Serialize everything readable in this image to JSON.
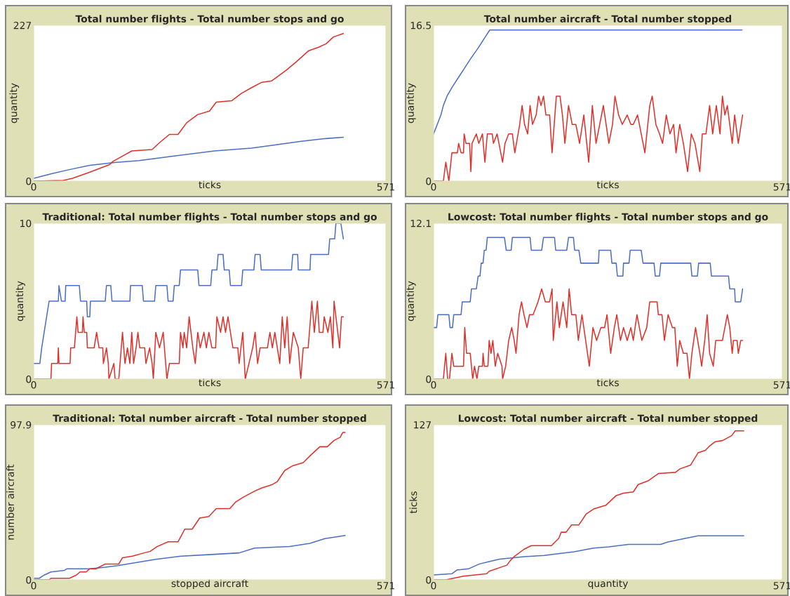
{
  "chart_data": [
    {
      "type": "line",
      "title": "Total number flights - Total number stops and go",
      "xlabel": "ticks",
      "ylabel": "quantity",
      "xlim": [
        0,
        571
      ],
      "ylim": [
        0,
        227
      ],
      "xticks": [
        0,
        571
      ],
      "yticks": [
        0,
        227
      ],
      "series": [
        {
          "color": "#4a6fc4",
          "x": [
            0,
            30,
            59,
            91,
            131,
            171,
            232,
            293,
            353,
            393,
            434,
            474,
            502
          ],
          "values": [
            4,
            11,
            17,
            23,
            27,
            30,
            37,
            44,
            48,
            53,
            58,
            62,
            64
          ]
        },
        {
          "color": "#e0302a",
          "x": [
            0,
            48,
            63,
            91,
            123,
            129,
            143,
            159,
            192,
            204,
            220,
            234,
            248,
            266,
            285,
            296,
            321,
            337,
            353,
            370,
            386,
            395,
            410,
            426,
            446,
            462,
            474,
            486,
            502
          ],
          "values": [
            0,
            1,
            4,
            13,
            24,
            29,
            36,
            44,
            46,
            56,
            68,
            68,
            85,
            97,
            102,
            115,
            117,
            128,
            136,
            144,
            146,
            152,
            162,
            174,
            190,
            195,
            200,
            210,
            215
          ]
        }
      ]
    },
    {
      "type": "line",
      "title": "Total number aircraft - Total number stopped",
      "xlabel": "ticks",
      "ylabel": "quantity",
      "xlim": [
        0,
        571
      ],
      "ylim": [
        0,
        16.5
      ],
      "xticks": [
        0,
        571
      ],
      "yticks": [
        0,
        16.5
      ],
      "series": [
        {
          "color": "#4a6fc4",
          "x": [
            0,
            6,
            12,
            16,
            22,
            31,
            41,
            51,
            61,
            72,
            82,
            92,
            505
          ],
          "values": [
            5,
            6,
            7,
            8,
            9,
            10,
            11,
            12,
            13,
            14,
            15,
            16,
            16
          ]
        },
        {
          "color": "#e0302a",
          "x": [
            0,
            16,
            20,
            25,
            30,
            39,
            41,
            45,
            49,
            50,
            53,
            59,
            61,
            63,
            70,
            74,
            80,
            84,
            88,
            96,
            98,
            104,
            113,
            117,
            123,
            129,
            133,
            141,
            145,
            149,
            154,
            158,
            162,
            168,
            172,
            176,
            180,
            184,
            190,
            194,
            201,
            207,
            211,
            215,
            221,
            227,
            233,
            239,
            246,
            254,
            260,
            266,
            272,
            278,
            287,
            293,
            297,
            303,
            309,
            317,
            323,
            327,
            334,
            340,
            346,
            354,
            358,
            364,
            370,
            375,
            381,
            387,
            393,
            397,
            403,
            409,
            416,
            422,
            428,
            436,
            440,
            446,
            452,
            457,
            463,
            469,
            473,
            477,
            481,
            489,
            493,
            499,
            506
          ],
          "values": [
            0,
            0,
            2,
            0,
            3,
            3,
            4,
            3,
            3,
            5,
            4,
            4,
            1,
            4,
            5,
            4,
            5,
            2,
            5,
            5,
            4,
            5,
            2,
            4,
            5,
            5,
            3,
            6,
            8,
            6,
            5,
            8,
            6,
            7,
            9,
            8,
            9,
            7,
            7,
            3,
            9,
            9,
            7,
            4,
            8,
            6,
            6,
            4,
            7,
            2,
            8,
            4,
            6,
            8,
            4,
            6,
            9,
            7,
            6,
            7,
            6,
            6,
            7,
            5,
            3,
            8,
            9,
            6,
            5,
            4,
            7,
            5,
            6,
            3,
            6,
            4,
            1,
            5,
            4,
            1,
            5,
            5,
            8,
            5,
            8,
            5,
            9,
            7,
            8,
            4,
            7,
            4,
            7
          ]
        }
      ]
    },
    {
      "type": "line",
      "title": "Traditional: Total number flights - Total number stops and go",
      "xlabel": "ticks",
      "ylabel": "quantity",
      "xlim": [
        0,
        571
      ],
      "ylim": [
        0,
        10
      ],
      "xticks": [
        0,
        571
      ],
      "yticks": [
        0,
        10
      ],
      "series": [
        {
          "color": "#4a6fc4",
          "x": [
            0,
            10,
            13,
            17,
            21,
            25,
            40,
            41,
            45,
            51,
            52,
            74,
            76,
            86,
            87,
            91,
            92,
            116,
            118,
            125,
            127,
            156,
            157,
            176,
            178,
            196,
            198,
            216,
            218,
            226,
            228,
            236,
            238,
            266,
            268,
            287,
            289,
            297,
            299,
            307,
            309,
            317,
            319,
            337,
            339,
            357,
            359,
            367,
            369,
            418,
            420,
            428,
            429,
            448,
            449,
            478,
            480,
            488,
            490,
            498,
            502
          ],
          "values": [
            1,
            1,
            2,
            3,
            4,
            5,
            5,
            6,
            5,
            5,
            6,
            6,
            5,
            5,
            4,
            4,
            5,
            5,
            6,
            6,
            5,
            5,
            6,
            6,
            5,
            5,
            6,
            6,
            5,
            5,
            6,
            6,
            7,
            7,
            6,
            6,
            7,
            7,
            8,
            8,
            7,
            7,
            6,
            6,
            7,
            7,
            8,
            8,
            7,
            7,
            8,
            8,
            7,
            7,
            8,
            8,
            9,
            9,
            10,
            10,
            9
          ]
        },
        {
          "color": "#e0302a",
          "x": [
            0,
            28,
            29,
            39,
            40,
            41,
            59,
            60,
            66,
            70,
            72,
            79,
            80,
            82,
            86,
            87,
            98,
            102,
            106,
            112,
            113,
            118,
            121,
            122,
            130,
            132,
            138,
            144,
            148,
            152,
            156,
            159,
            162,
            166,
            169,
            172,
            180,
            182,
            188,
            192,
            194,
            198,
            204,
            210,
            214,
            216,
            220,
            236,
            238,
            242,
            244,
            248,
            252,
            258,
            262,
            266,
            270,
            276,
            280,
            284,
            289,
            295,
            297,
            303,
            307,
            311,
            315,
            319,
            323,
            331,
            333,
            339,
            343,
            349,
            355,
            359,
            363,
            367,
            379,
            383,
            387,
            391,
            395,
            399,
            403,
            407,
            411,
            415,
            421,
            429,
            433,
            437,
            445,
            451,
            455,
            460,
            463,
            469,
            471,
            477,
            481,
            485,
            487,
            493,
            496,
            499,
            502
          ],
          "values": [
            0,
            0,
            1,
            1,
            2,
            1,
            1,
            2,
            2,
            4,
            3,
            3,
            4,
            3,
            3,
            2,
            2,
            3,
            2,
            2,
            1,
            2,
            1,
            0,
            1,
            0,
            0,
            3,
            1,
            2,
            1,
            3,
            1,
            2,
            3,
            2,
            2,
            1,
            2,
            1,
            0,
            3,
            2,
            3,
            1,
            0,
            1,
            1,
            3,
            2,
            3,
            2,
            4,
            2,
            1,
            3,
            2,
            3,
            2,
            3,
            2,
            2,
            4,
            3,
            4,
            3,
            4,
            3,
            2,
            2,
            1,
            3,
            0,
            1,
            2,
            3,
            1,
            2,
            2,
            3,
            2,
            3,
            2,
            1,
            4,
            2,
            4,
            1,
            3,
            2,
            0,
            2,
            2,
            5,
            3,
            5,
            3,
            3,
            4,
            3,
            4,
            2,
            5,
            3,
            2,
            4,
            4
          ]
        }
      ]
    },
    {
      "type": "line",
      "title": "Lowcost: Total number flights - Total number stops and go",
      "xlabel": "ticks",
      "ylabel": "quantity",
      "xlim": [
        0,
        571
      ],
      "ylim": [
        0,
        12.1
      ],
      "xticks": [
        0,
        571
      ],
      "yticks": [
        0,
        12.1
      ],
      "series": [
        {
          "color": "#4a6fc4",
          "x": [
            0,
            5,
            7,
            25,
            27,
            31,
            33,
            45,
            47,
            60,
            62,
            70,
            73,
            76,
            78,
            81,
            83,
            86,
            88,
            116,
            119,
            127,
            129,
            158,
            160,
            177,
            180,
            198,
            200,
            218,
            221,
            229,
            231,
            238,
            241,
            270,
            271,
            290,
            292,
            299,
            301,
            310,
            311,
            320,
            322,
            340,
            343,
            361,
            363,
            370,
            372,
            421,
            423,
            432,
            434,
            453,
            455,
            483,
            485,
            493,
            494,
            503,
            506
          ],
          "values": [
            4,
            4,
            5,
            5,
            4,
            4,
            5,
            5,
            6,
            6,
            7,
            7,
            8,
            8,
            9,
            9,
            10,
            10,
            11,
            11,
            10,
            10,
            11,
            11,
            10,
            10,
            11,
            11,
            10,
            10,
            11,
            11,
            10,
            10,
            9,
            9,
            10,
            10,
            9,
            9,
            8,
            8,
            9,
            9,
            10,
            10,
            9,
            9,
            8,
            8,
            9,
            9,
            8,
            8,
            9,
            9,
            8,
            8,
            7,
            7,
            6,
            6,
            7
          ]
        },
        {
          "color": "#e0302a",
          "x": [
            0,
            16,
            20,
            23,
            26,
            30,
            33,
            49,
            51,
            54,
            60,
            64,
            67,
            71,
            74,
            80,
            81,
            83,
            89,
            91,
            94,
            97,
            101,
            105,
            112,
            113,
            118,
            123,
            128,
            132,
            135,
            140,
            144,
            148,
            153,
            157,
            163,
            171,
            177,
            183,
            190,
            194,
            196,
            202,
            206,
            212,
            218,
            222,
            226,
            233,
            237,
            243,
            249,
            255,
            261,
            267,
            274,
            280,
            284,
            290,
            296,
            300,
            306,
            311,
            317,
            323,
            327,
            333,
            341,
            349,
            354,
            360,
            366,
            368,
            374,
            378,
            384,
            391,
            395,
            399,
            403,
            409,
            415,
            419,
            423,
            429,
            436,
            439,
            444,
            448,
            452,
            458,
            462,
            473,
            477,
            481,
            485,
            489,
            491,
            497,
            499,
            503,
            506
          ],
          "values": [
            0,
            0,
            2,
            0,
            0,
            2,
            1,
            1,
            4,
            2,
            2,
            0,
            1,
            0,
            1,
            1,
            2,
            1,
            1,
            3,
            2,
            3,
            1,
            2,
            1,
            0,
            1,
            3,
            4,
            3,
            2,
            5,
            6,
            5,
            4,
            5,
            5,
            6,
            7,
            6,
            6,
            7,
            3,
            6,
            4,
            6,
            4,
            7,
            5,
            5,
            3,
            5,
            3,
            1,
            4,
            3,
            4,
            4,
            5,
            2,
            4,
            5,
            3,
            4,
            3,
            4,
            3,
            5,
            3,
            4,
            6,
            6,
            6,
            5,
            5,
            3,
            5,
            4,
            4,
            1,
            3,
            2,
            2,
            0,
            2,
            4,
            2,
            1,
            3,
            5,
            2,
            1,
            3,
            3,
            4,
            5,
            4,
            2,
            3,
            3,
            2,
            3,
            3
          ]
        }
      ]
    },
    {
      "type": "line",
      "title": "Traditional: Total number aircraft - Total number stopped",
      "xlabel": "stopped aircraft",
      "ylabel": "number aircraft",
      "xlim": [
        0,
        571
      ],
      "ylim": [
        0,
        97.9
      ],
      "xticks": [
        0,
        571
      ],
      "yticks": [
        0,
        97.9
      ],
      "series": [
        {
          "color": "#4a6fc4",
          "x": [
            0,
            9,
            17,
            28,
            50,
            54,
            91,
            116,
            136,
            167,
            198,
            239,
            288,
            333,
            358,
            415,
            448,
            472,
            489,
            505
          ],
          "values": [
            1,
            1,
            3,
            5,
            6,
            7,
            7,
            8,
            9,
            11,
            13,
            15,
            16,
            17,
            20,
            21,
            23,
            26,
            27,
            28
          ]
        },
        {
          "color": "#e0302a",
          "x": [
            0,
            25,
            28,
            58,
            69,
            75,
            85,
            91,
            101,
            116,
            138,
            144,
            160,
            179,
            189,
            200,
            218,
            234,
            245,
            257,
            269,
            284,
            296,
            318,
            327,
            339,
            358,
            370,
            386,
            395,
            407,
            420,
            437,
            450,
            464,
            476,
            487,
            497,
            501,
            505
          ],
          "values": [
            0,
            0,
            1,
            1,
            3,
            5,
            5,
            7,
            7,
            10,
            10,
            14,
            15,
            17,
            18,
            21,
            24,
            24,
            32,
            32,
            39,
            40,
            45,
            45,
            49,
            52,
            56,
            58,
            60,
            62,
            69,
            72,
            74,
            79,
            84,
            84,
            88,
            90,
            93,
            93
          ]
        }
      ]
    },
    {
      "type": "line",
      "title": "Lowcost: Total number aircraft - Total number stopped",
      "xlabel": "quantity",
      "ylabel": "ticks",
      "xlim": [
        0,
        571
      ],
      "ylim": [
        0,
        127
      ],
      "xticks": [
        0,
        571
      ],
      "yticks": [
        0,
        127
      ],
      "series": [
        {
          "color": "#4a6fc4",
          "x": [
            0,
            30,
            38,
            57,
            75,
            91,
            108,
            128,
            148,
            181,
            197,
            230,
            262,
            287,
            319,
            372,
            384,
            413,
            433,
            473,
            508
          ],
          "values": [
            4,
            5,
            8,
            9,
            13,
            15,
            17,
            18,
            19,
            20,
            21,
            23,
            26,
            27,
            29,
            29,
            31,
            34,
            36,
            36,
            36
          ]
        },
        {
          "color": "#e0302a",
          "x": [
            0,
            20,
            49,
            87,
            91,
            108,
            120,
            126,
            132,
            148,
            160,
            193,
            205,
            209,
            217,
            226,
            238,
            250,
            262,
            282,
            299,
            311,
            327,
            335,
            351,
            368,
            396,
            404,
            421,
            433,
            445,
            453,
            461,
            473,
            488,
            494,
            508
          ],
          "values": [
            0,
            0,
            3,
            5,
            7,
            10,
            12,
            16,
            19,
            25,
            28,
            28,
            34,
            39,
            39,
            45,
            45,
            54,
            58,
            61,
            69,
            71,
            72,
            78,
            81,
            87,
            88,
            91,
            94,
            104,
            106,
            110,
            113,
            114,
            118,
            122,
            122
          ]
        }
      ]
    }
  ]
}
